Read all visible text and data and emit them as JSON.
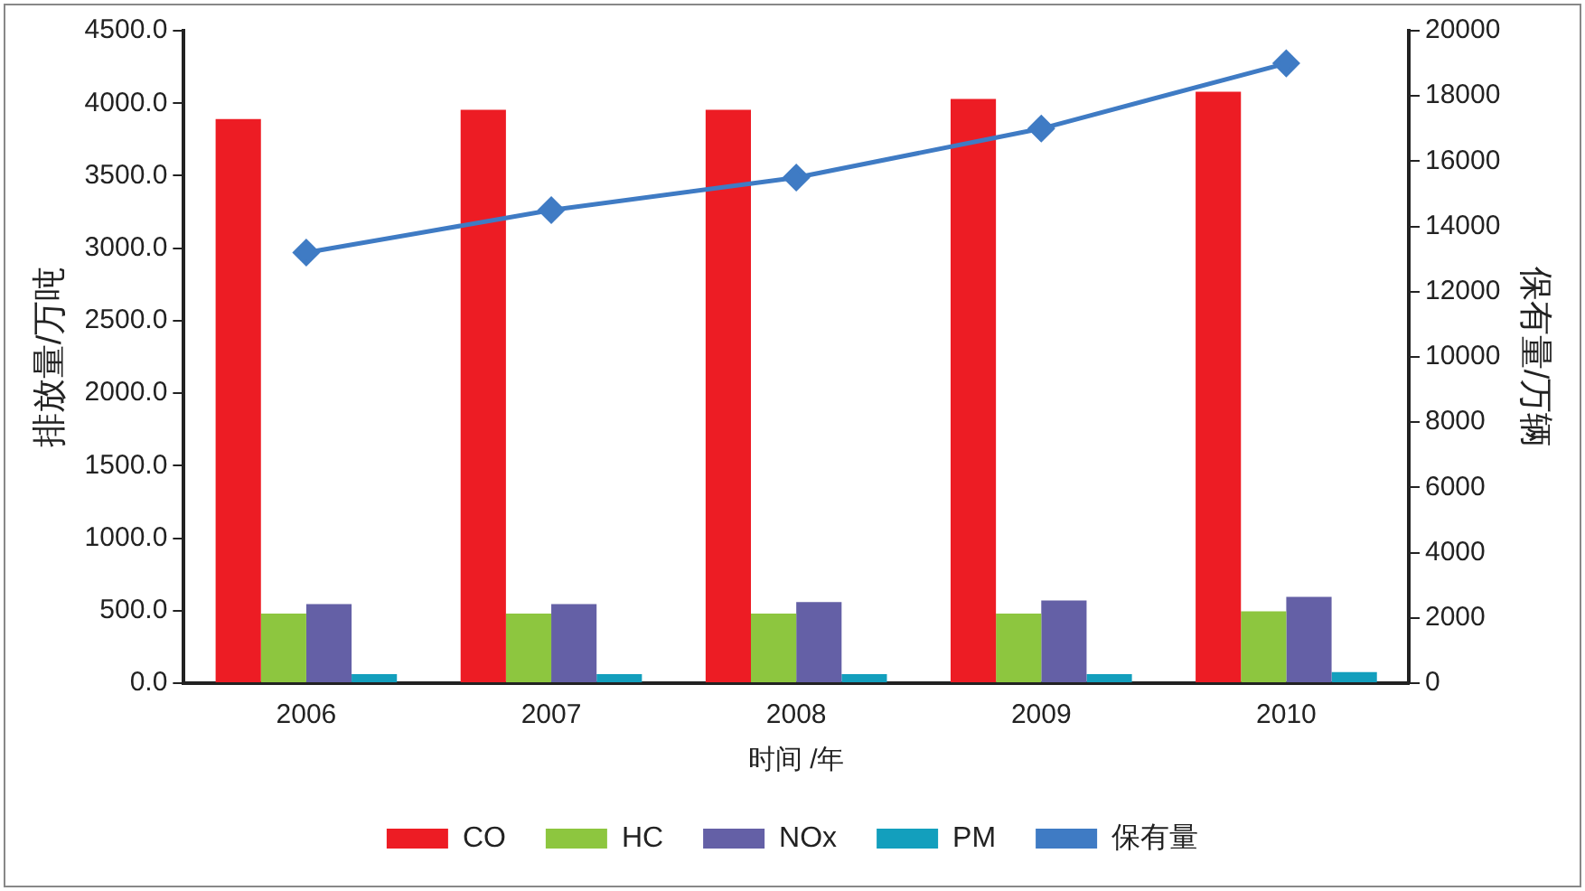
{
  "chart_data": {
    "type": "bar",
    "xlabel": "时间 /年",
    "ylabel": "排放量/万吨",
    "y2label": "保有量/万辆",
    "categories": [
      "2006",
      "2007",
      "2008",
      "2009",
      "2010"
    ],
    "series": [
      {
        "name": "CO",
        "color": "#ed1c24",
        "values": [
          3890,
          3955,
          3955,
          4030,
          4080
        ]
      },
      {
        "name": "HC",
        "color": "#8dc63f",
        "values": [
          480,
          480,
          480,
          480,
          495
        ]
      },
      {
        "name": "NOx",
        "color": "#6460a6",
        "values": [
          545,
          545,
          560,
          570,
          595
        ]
      },
      {
        "name": "PM",
        "color": "#139fbd",
        "values": [
          63,
          63,
          63,
          63,
          76
        ]
      },
      {
        "name": "保有量",
        "type": "line",
        "axis": "y2",
        "color": "#3f7bc4",
        "marker": "diamond",
        "values": [
          13200,
          14500,
          15500,
          17000,
          19000
        ]
      }
    ],
    "ylim": [
      0,
      4500
    ],
    "yticks": [
      {
        "value": 0,
        "label": "0.0"
      },
      {
        "value": 500,
        "label": "500.0"
      },
      {
        "value": 1000,
        "label": "1000.0"
      },
      {
        "value": 1500,
        "label": "1500.0"
      },
      {
        "value": 2000,
        "label": "2000.0"
      },
      {
        "value": 2500,
        "label": "2500.0"
      },
      {
        "value": 3000,
        "label": "3000.0"
      },
      {
        "value": 3500,
        "label": "3500.0"
      },
      {
        "value": 4000,
        "label": "4000.0"
      },
      {
        "value": 4500,
        "label": "4500.0"
      }
    ],
    "y2lim": [
      0,
      20000
    ],
    "y2ticks": [
      0,
      2000,
      4000,
      6000,
      8000,
      10000,
      12000,
      14000,
      16000,
      18000,
      20000
    ],
    "grid": false,
    "legend": "bottom"
  }
}
